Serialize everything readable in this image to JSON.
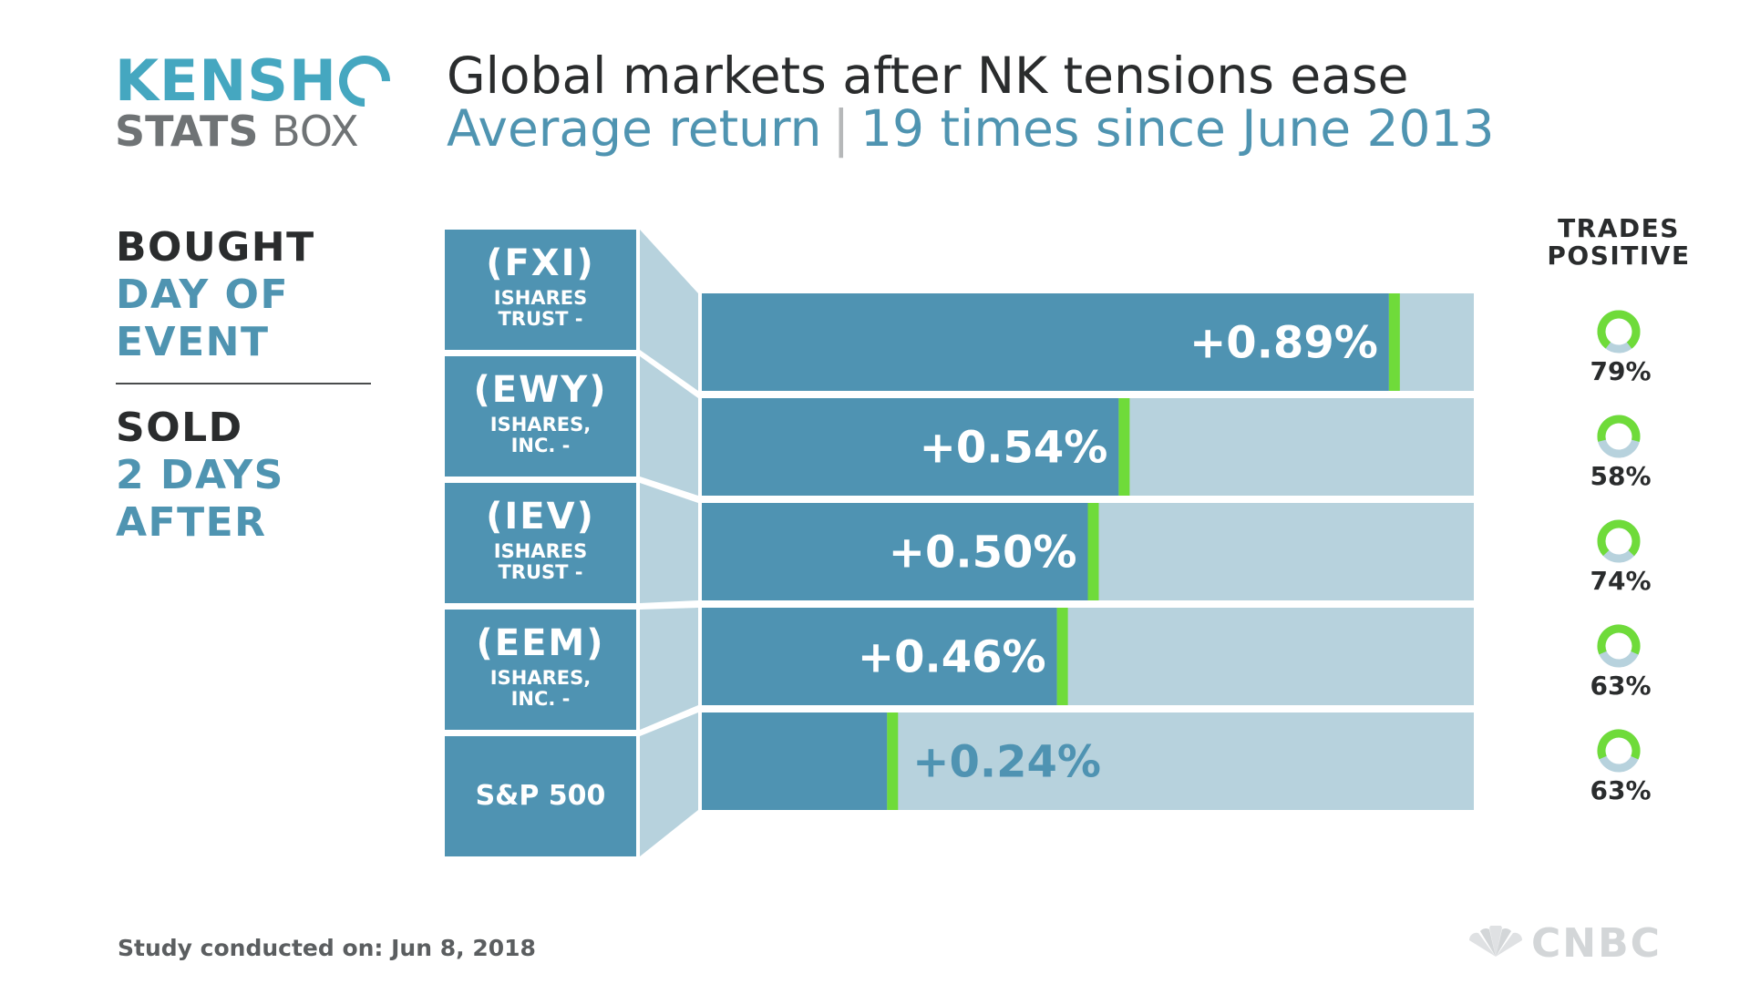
{
  "logo": {
    "top": "KENSHO",
    "bottom_bold": "STATS",
    "bottom_light": " BOX"
  },
  "header": {
    "title": "Global markets after NK tensions ease",
    "subtitle_left": "Average return",
    "subtitle_sep": "|",
    "subtitle_right": "19 times since June 2013"
  },
  "legend": {
    "bought_label": "BOUGHT",
    "bought_when": [
      "DAY OF",
      "EVENT"
    ],
    "sold_label": "SOLD",
    "sold_when": [
      "2 DAYS",
      "AFTER"
    ]
  },
  "positive_heading": [
    "TRADES",
    "POSITIVE"
  ],
  "footer": "Study conducted on: Jun 8, 2018",
  "brand": "CNBC",
  "chart_data": {
    "type": "bar",
    "orientation": "horizontal",
    "title": "Global markets after NK tensions ease",
    "subtitle": "Average return | 19 times since June 2013",
    "categories": [
      "(FXI)",
      "(EWY)",
      "(IEV)",
      "(EEM)",
      "S&P 500"
    ],
    "category_descriptions": [
      "ISHARES TRUST -",
      "ISHARES, INC. -",
      "ISHARES TRUST -",
      "ISHARES, INC. -",
      ""
    ],
    "values": [
      0.89,
      0.54,
      0.5,
      0.46,
      0.24
    ],
    "value_labels": [
      "+0.89%",
      "+0.54%",
      "+0.50%",
      "+0.46%",
      "+0.24%"
    ],
    "xlim": [
      0,
      1.0
    ],
    "trades_positive": [
      79,
      58,
      74,
      63,
      63
    ],
    "trades_positive_labels": [
      "79%",
      "58%",
      "74%",
      "63%",
      "63%"
    ],
    "colors": {
      "bar": "#4f93b2",
      "track": "#b7d2dd",
      "marker": "#6fdb3a",
      "connector": "#b7d2dd",
      "donut_track": "#b7d2dd",
      "donut_fill": "#6fdb3a"
    }
  }
}
